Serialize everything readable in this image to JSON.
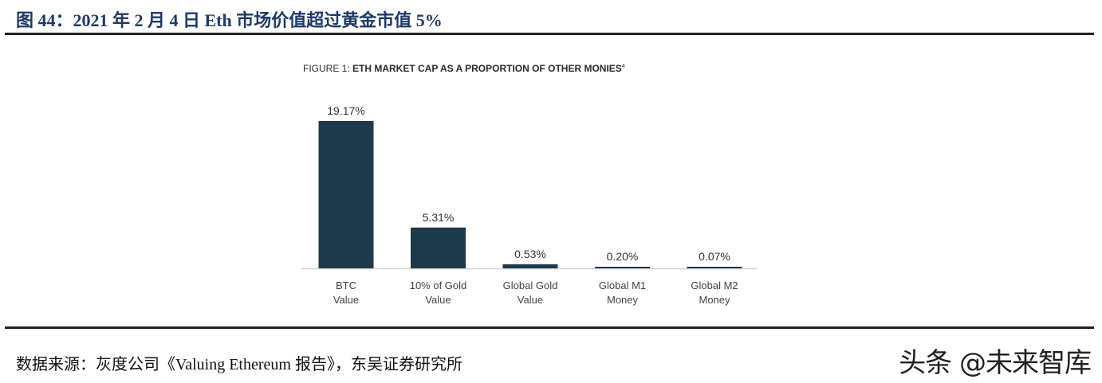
{
  "header": {
    "title": "图 44：2021 年 2 月 4 日 Eth 市场价值超过黄金市值 5%"
  },
  "footer": {
    "source": "数据来源：灰度公司《Valuing Ethereum 报告》，东吴证券研究所",
    "watermark": "头条 @未来智库"
  },
  "chart_data": {
    "type": "bar",
    "title_prefix": "FIGURE 1: ",
    "title_main": "ETH MARKET CAP AS A PROPORTION OF OTHER MONIES",
    "title_footnote": "4",
    "categories": [
      [
        "BTC",
        "Value"
      ],
      [
        "10% of Gold",
        "Value"
      ],
      [
        "Global Gold",
        "Value"
      ],
      [
        "Global M1",
        "Money"
      ],
      [
        "Global M2",
        "Money"
      ]
    ],
    "values": [
      19.17,
      5.31,
      0.53,
      0.2,
      0.07
    ],
    "labels": [
      "19.17%",
      "5.31%",
      "0.53%",
      "0.20%",
      "0.07%"
    ],
    "unit": "%",
    "ylim": [
      0,
      19.17
    ],
    "grid": false,
    "bar_color": "#1e3a4a",
    "xlabel": "",
    "ylabel": ""
  }
}
